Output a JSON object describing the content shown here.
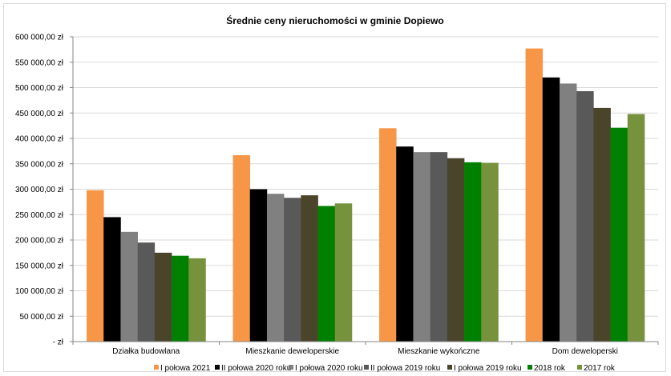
{
  "chart_data": {
    "type": "bar",
    "title": "Średnie ceny nieruchomości w gminie Dopiewo",
    "xlabel": "",
    "ylabel": "",
    "categories": [
      "Działka budowlana",
      "Mieszkanie deweloperskie",
      "Mieszkanie wykończne",
      "Dom deweloperski"
    ],
    "ylim": [
      0,
      600000
    ],
    "ytick_step": 50000,
    "ytick_labels": [
      "-   zł",
      "50 000,00  zł",
      "100 000,00  zł",
      "150 000,00  zł",
      "200 000,00  zł",
      "250 000,00  zł",
      "300 000,00  zł",
      "350 000,00  zł",
      "400 000,00  zł",
      "450 000,00  zł",
      "500 000,00  zł",
      "550 000,00  zł",
      "600 000,00  zł"
    ],
    "grid": true,
    "legend_position": "bottom",
    "series": [
      {
        "name": "I połowa 2021",
        "color": "#f79646",
        "values": [
          298000,
          367000,
          420000,
          577000
        ]
      },
      {
        "name": "II połowa 2020 roku",
        "color": "#000000",
        "values": [
          245000,
          300000,
          384000,
          520000
        ]
      },
      {
        "name": "I połowa 2020 roku",
        "color": "#808080",
        "values": [
          216000,
          291000,
          373000,
          508000
        ]
      },
      {
        "name": "II połowa 2019 roku",
        "color": "#595959",
        "values": [
          195000,
          283000,
          373000,
          493000
        ]
      },
      {
        "name": "I połowa 2019 roku",
        "color": "#4a442a",
        "values": [
          175000,
          288000,
          361000,
          460000
        ]
      },
      {
        "name": "2018 rok",
        "color": "#008000",
        "values": [
          169000,
          267000,
          353000,
          421000
        ]
      },
      {
        "name": "2017 rok",
        "color": "#76923c",
        "values": [
          164000,
          272000,
          352000,
          448000
        ]
      }
    ]
  }
}
